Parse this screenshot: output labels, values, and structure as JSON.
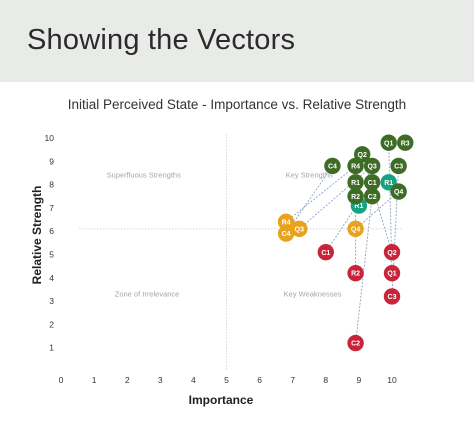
{
  "slide": {
    "title": "Showing the Vectors"
  },
  "chart_data": {
    "type": "scatter",
    "title": "Initial Perceived State - Importance vs. Relative Strength",
    "xlabel": "Importance",
    "ylabel": "Relative Strength",
    "xlim": [
      0,
      10
    ],
    "ylim": [
      0,
      10
    ],
    "x_ticks": [
      "0",
      "1",
      "2",
      "3",
      "4",
      "5",
      "6",
      "7",
      "8",
      "9",
      "10"
    ],
    "y_ticks": [
      "1",
      "2",
      "3",
      "4",
      "5",
      "6",
      "7",
      "8",
      "9",
      "10"
    ],
    "grid": false,
    "quadrant_dividers": {
      "x": 5,
      "y": 6.1
    },
    "quadrants": [
      {
        "label": "Superfluous Strengths",
        "x": 2.5,
        "y": 8.3
      },
      {
        "label": "Key Strengths",
        "x": 7.5,
        "y": 8.3
      },
      {
        "label": "Zone of Irrelevance",
        "x": 2.6,
        "y": 3.2
      },
      {
        "label": "Key Weaknesses",
        "x": 7.6,
        "y": 3.2
      }
    ],
    "colors": {
      "green": "#3e6b26",
      "teal": "#16a37f",
      "yellow": "#e8a21b",
      "red": "#c9253a",
      "vector": "#8ea4c0"
    },
    "points": [
      {
        "label": "Q1",
        "x": 9.9,
        "y": 9.8,
        "color": "green"
      },
      {
        "label": "R3",
        "x": 10.4,
        "y": 9.8,
        "color": "green"
      },
      {
        "label": "Q2",
        "x": 9.1,
        "y": 9.3,
        "color": "green"
      },
      {
        "label": "C3",
        "x": 10.2,
        "y": 8.8,
        "color": "green"
      },
      {
        "label": "C4",
        "x": 8.2,
        "y": 8.8,
        "color": "green"
      },
      {
        "label": "R4",
        "x": 8.9,
        "y": 8.8,
        "color": "green"
      },
      {
        "label": "Q3",
        "x": 9.4,
        "y": 8.8,
        "color": "green"
      },
      {
        "label": "R1",
        "x": 9.9,
        "y": 8.1,
        "color": "teal"
      },
      {
        "label": "R1",
        "x": 8.9,
        "y": 8.1,
        "color": "green"
      },
      {
        "label": "C1",
        "x": 9.4,
        "y": 8.1,
        "color": "green"
      },
      {
        "label": "Q4",
        "x": 10.2,
        "y": 7.7,
        "color": "green"
      },
      {
        "label": "R1",
        "x": 9.0,
        "y": 7.1,
        "color": "teal"
      },
      {
        "label": "R2",
        "x": 8.9,
        "y": 7.5,
        "color": "green"
      },
      {
        "label": "C2",
        "x": 9.4,
        "y": 7.5,
        "color": "green"
      },
      {
        "label": "R4",
        "x": 6.8,
        "y": 6.4,
        "color": "yellow"
      },
      {
        "label": "Q3",
        "x": 7.2,
        "y": 6.1,
        "color": "yellow"
      },
      {
        "label": "C4",
        "x": 6.8,
        "y": 5.9,
        "color": "yellow"
      },
      {
        "label": "Q4",
        "x": 8.9,
        "y": 6.1,
        "color": "yellow"
      },
      {
        "label": "C1",
        "x": 8.0,
        "y": 5.1,
        "color": "red"
      },
      {
        "label": "Q2",
        "x": 10.0,
        "y": 5.1,
        "color": "red"
      },
      {
        "label": "R2",
        "x": 8.9,
        "y": 4.2,
        "color": "red"
      },
      {
        "label": "Q1",
        "x": 10.0,
        "y": 4.2,
        "color": "red"
      },
      {
        "label": "C3",
        "x": 10.0,
        "y": 3.2,
        "color": "red"
      },
      {
        "label": "C2",
        "x": 8.9,
        "y": 1.2,
        "color": "red"
      }
    ],
    "vectors": [
      {
        "from": [
          6.8,
          6.4
        ],
        "to": [
          8.9,
          8.8
        ]
      },
      {
        "from": [
          7.2,
          6.1
        ],
        "to": [
          9.4,
          8.8
        ]
      },
      {
        "from": [
          6.8,
          5.9
        ],
        "to": [
          8.2,
          8.8
        ]
      },
      {
        "from": [
          8.9,
          6.1
        ],
        "to": [
          10.2,
          7.7
        ]
      },
      {
        "from": [
          8.0,
          5.1
        ],
        "to": [
          9.4,
          8.1
        ]
      },
      {
        "from": [
          10.0,
          5.1
        ],
        "to": [
          9.1,
          9.3
        ]
      },
      {
        "from": [
          8.9,
          4.2
        ],
        "to": [
          8.9,
          7.5
        ]
      },
      {
        "from": [
          10.0,
          4.2
        ],
        "to": [
          9.9,
          9.8
        ]
      },
      {
        "from": [
          10.0,
          3.2
        ],
        "to": [
          10.2,
          8.8
        ]
      },
      {
        "from": [
          8.9,
          1.2
        ],
        "to": [
          9.4,
          7.5
        ]
      }
    ]
  }
}
